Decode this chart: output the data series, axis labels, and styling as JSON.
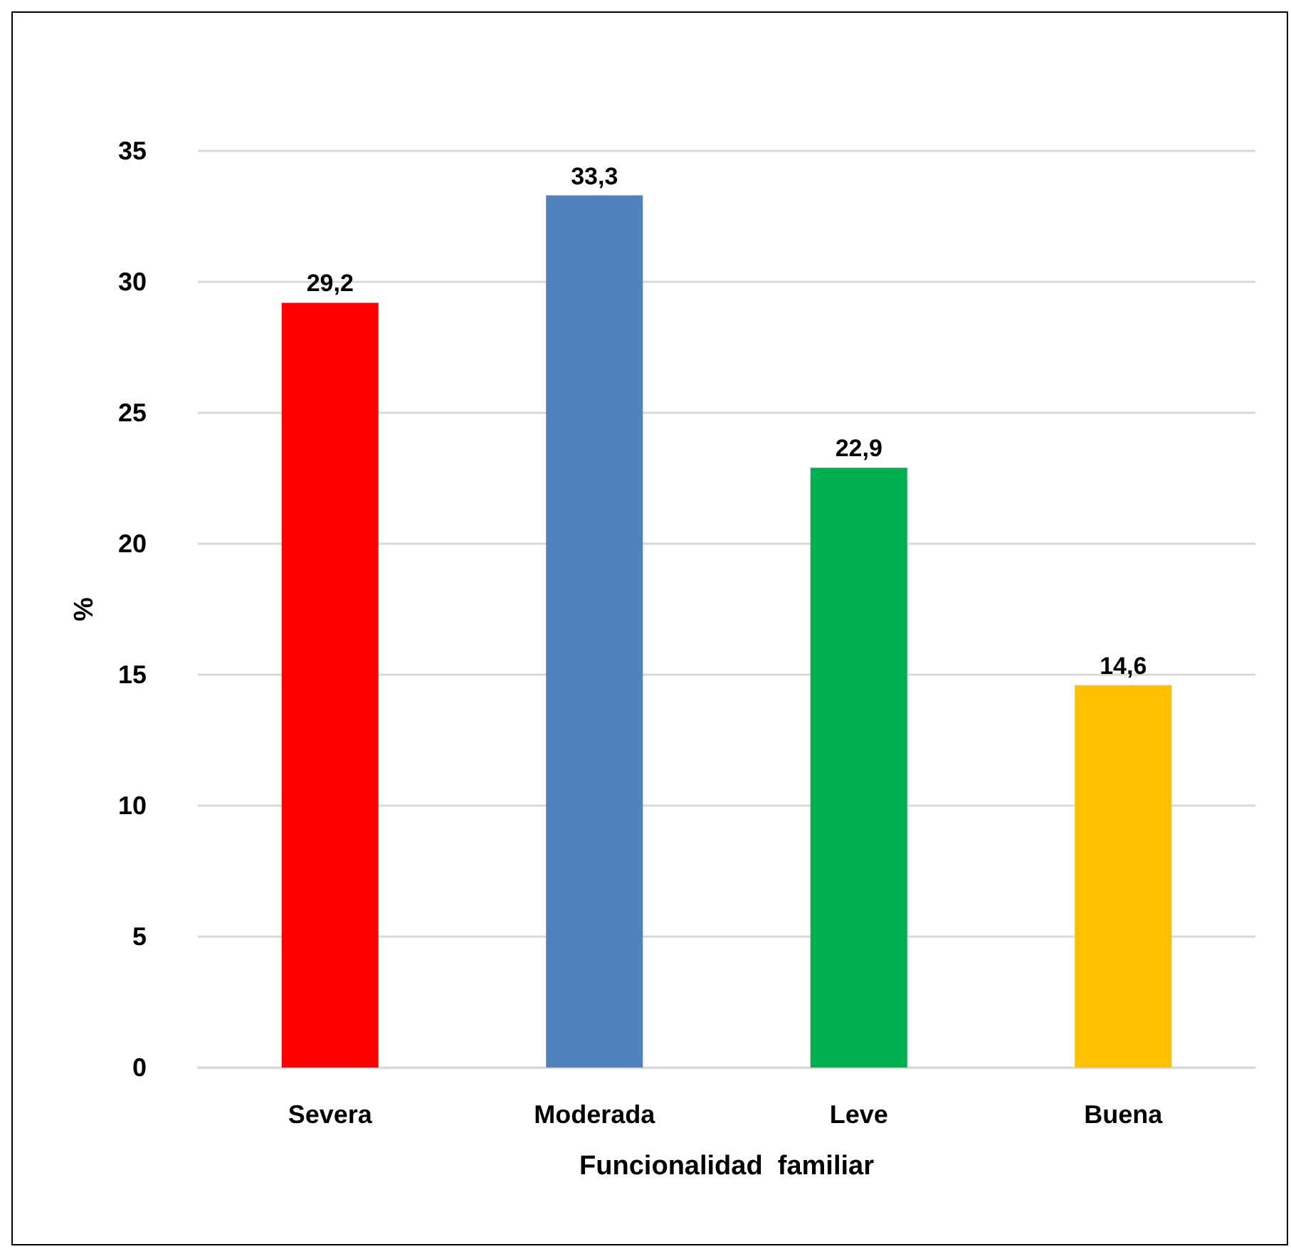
{
  "chart_data": {
    "type": "bar",
    "xlabel": "Funcionalidad  familiar",
    "ylabel": "%",
    "categories": [
      "Severa",
      "Moderada",
      "Leve",
      "Buena"
    ],
    "values": [
      29.2,
      33.3,
      22.9,
      14.6
    ],
    "colors": [
      "#ff0000",
      "#4f81bd",
      "#00b050",
      "#ffc000"
    ],
    "value_labels": [
      "29,2",
      "33,3",
      "22,9",
      "14,6"
    ],
    "ylim": [
      0,
      35
    ],
    "yticks": [
      0,
      5,
      10,
      15,
      20,
      25,
      30,
      35
    ],
    "grid": "y"
  }
}
